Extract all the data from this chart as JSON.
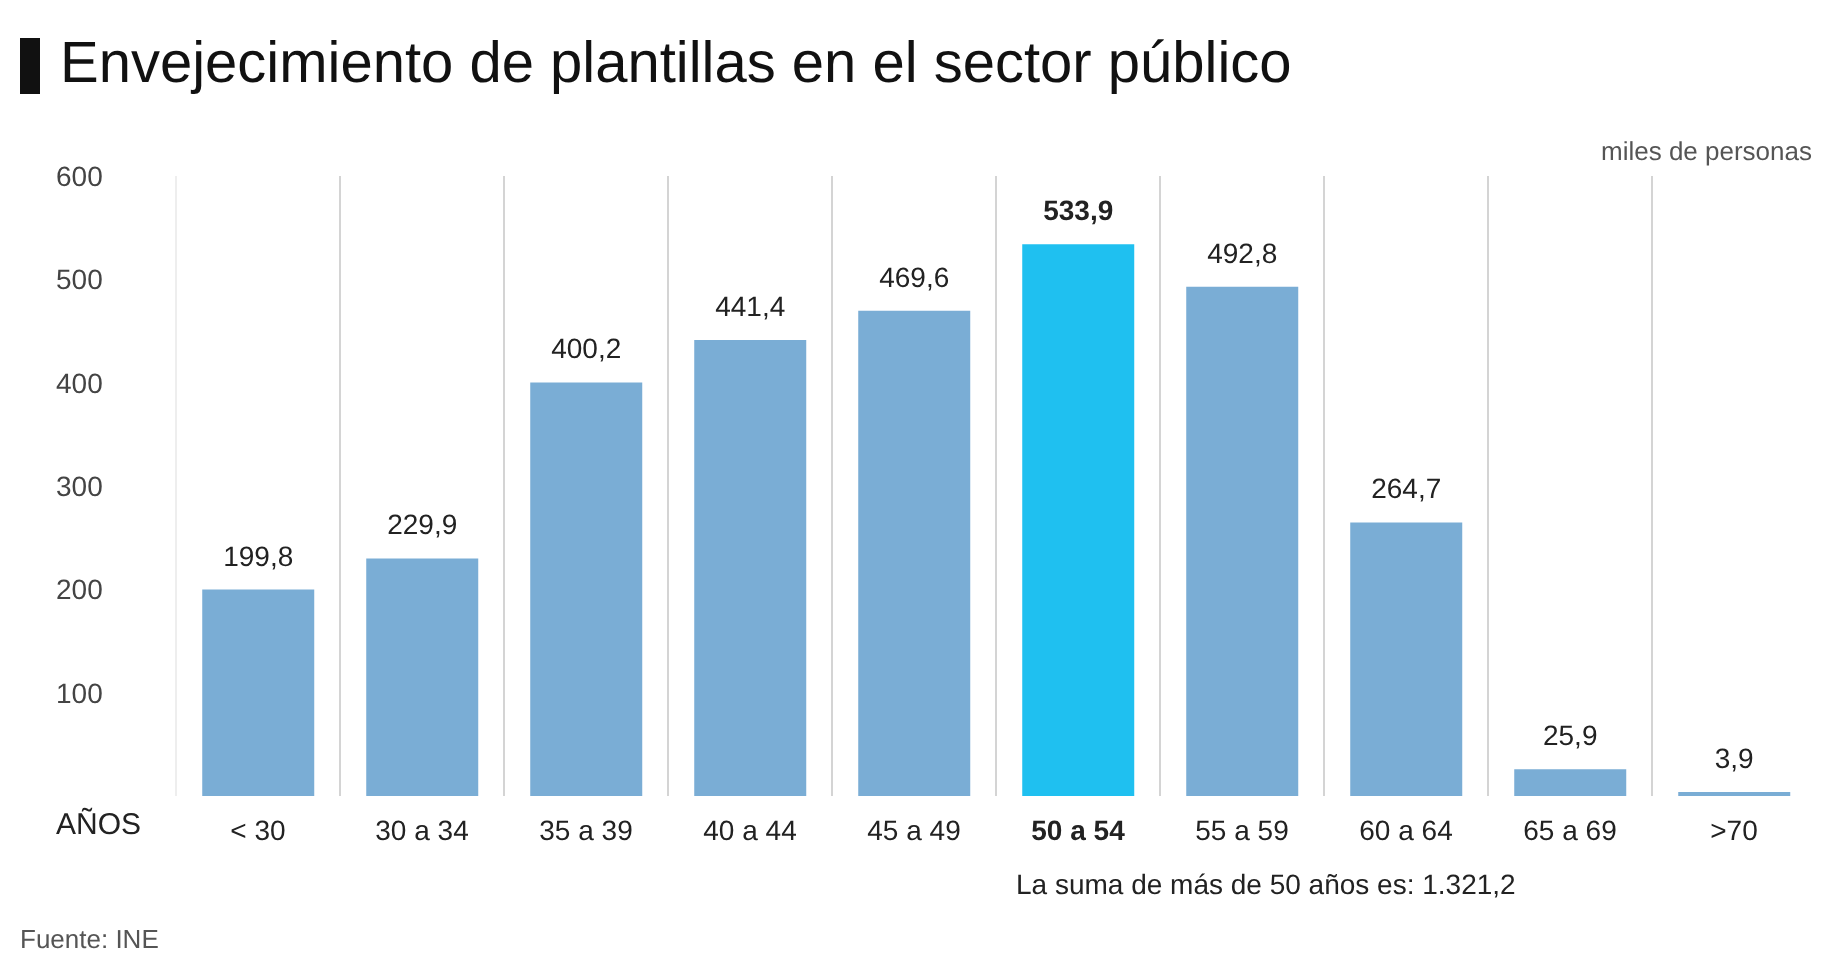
{
  "chart_data": {
    "type": "bar",
    "title": "Envejecimiento de plantillas en el sector público",
    "xlabel": "AÑOS",
    "categories": [
      "< 30",
      "30 a 34",
      "35 a 39",
      "40 a 44",
      "45 a 49",
      "50 a 54",
      "55 a 59",
      "60 a 64",
      "65 a 69",
      ">70"
    ],
    "values": [
      199.8,
      229.9,
      400.2,
      441.4,
      469.6,
      533.9,
      492.8,
      264.7,
      25.9,
      3.9
    ],
    "value_labels": [
      "199,8",
      "229,9",
      "400,2",
      "441,4",
      "469,6",
      "533,9",
      "492,8",
      "264,7",
      "25,9",
      "3,9"
    ],
    "colors": [
      "#7aadd5",
      "#7aadd5",
      "#7aadd5",
      "#7aadd5",
      "#7aadd5",
      "#1fc0f0",
      "#7aadd5",
      "#7aadd5",
      "#7aadd5",
      "#7aadd5"
    ],
    "ylim": [
      0,
      600
    ],
    "yticks": [
      100,
      200,
      300,
      400,
      500,
      600
    ],
    "grid": "x",
    "legend": false,
    "annotations": [
      "miles de personas",
      "La suma de más de 50 años es: 1.321,2",
      "Fuente: INE"
    ]
  }
}
